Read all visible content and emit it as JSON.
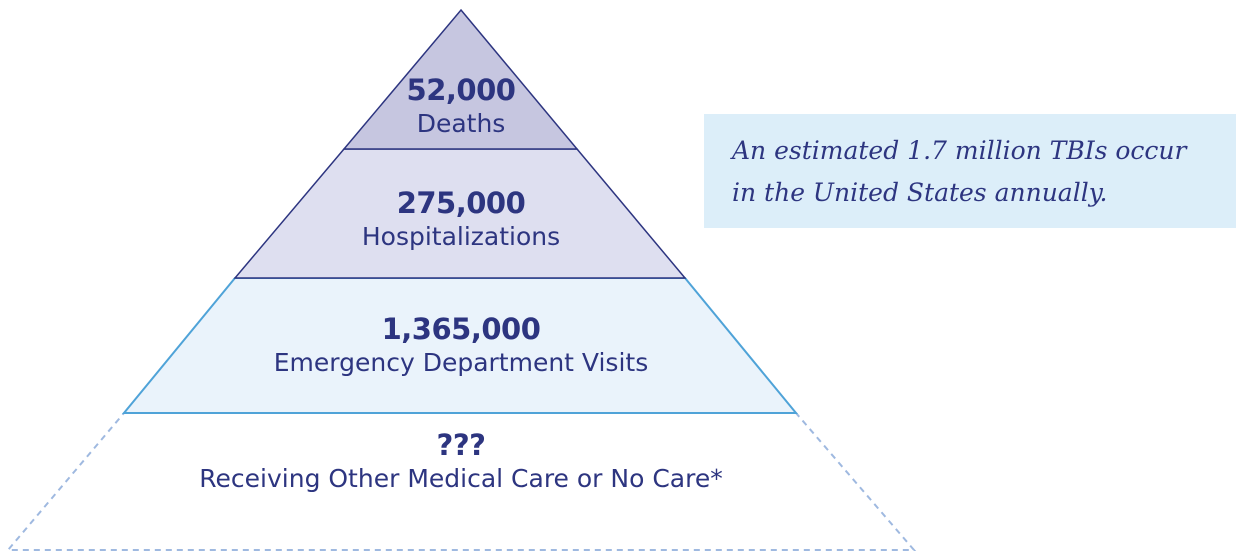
{
  "tiers": [
    {
      "value": "52,000",
      "label": "Deaths",
      "fill": "#c6c6e0",
      "stroke": "#2d3580"
    },
    {
      "value": "275,000",
      "label": "Hospitalizations",
      "fill": "#dedff0",
      "stroke": "#2d3580"
    },
    {
      "value": "1,365,000",
      "label": "Emergency Department Visits",
      "fill": "#eaf3fb",
      "stroke": "#4fa3d8"
    },
    {
      "value": "???",
      "label": "Receiving Other Medical Care or No Care*",
      "fill": "#ffffff",
      "stroke": "#9fb9e0"
    }
  ],
  "callout": {
    "text": "An estimated 1.7 million TBIs occur\nin the United States annually.",
    "background": "#dceef9"
  },
  "colors": {
    "text": "#2d3580"
  }
}
